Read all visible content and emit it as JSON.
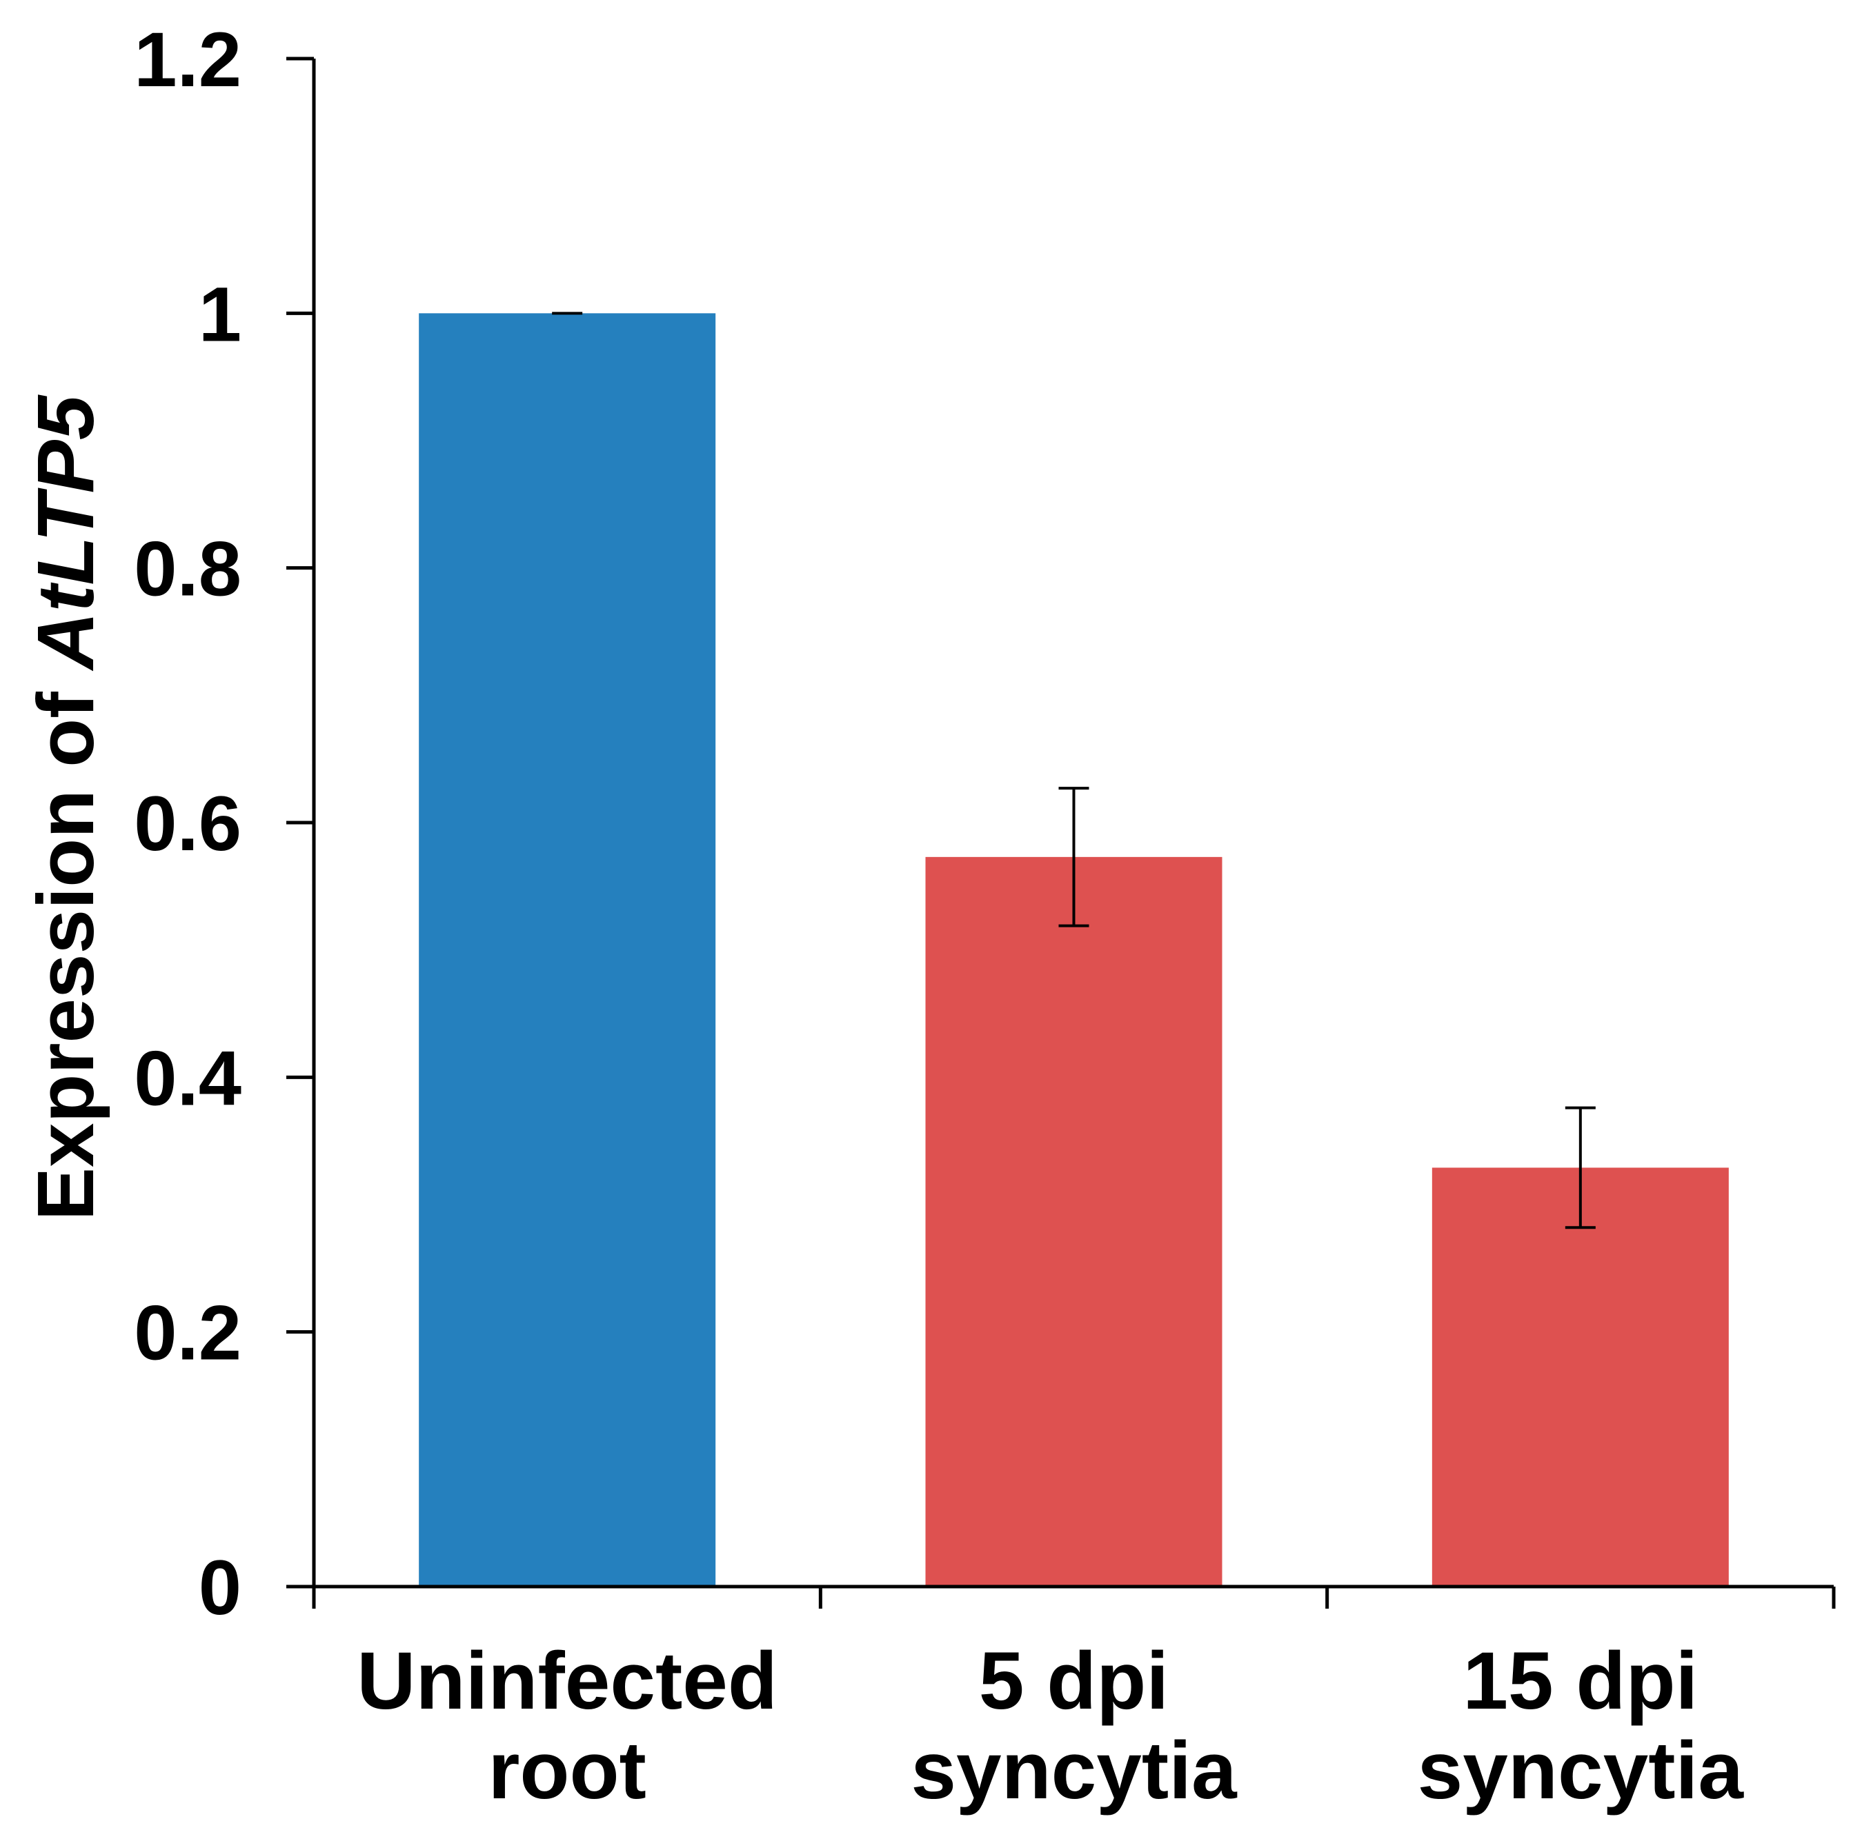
{
  "chart_data": {
    "type": "bar",
    "title": "",
    "xlabel": "",
    "ylabel": {
      "prefix": "Expression of ",
      "gene": "AtLTP5"
    },
    "ylim": [
      0,
      1.2
    ],
    "yticks": [
      0,
      0.2,
      0.4,
      0.6,
      0.8,
      1,
      1.2
    ],
    "ytick_labels": [
      "0",
      "0.2",
      "0.4",
      "0.6",
      "0.8",
      "1",
      "1.2"
    ],
    "categories": [
      {
        "line1": "Uninfected",
        "line2": "root"
      },
      {
        "line1": "5 dpi",
        "line2": "syncytia"
      },
      {
        "line1": "15 dpi",
        "line2": "syncytia"
      }
    ],
    "values": [
      1.0,
      0.573,
      0.329
    ],
    "error": [
      0.0,
      0.054,
      0.047
    ],
    "colors": [
      "#2580BE",
      "#DE5150",
      "#DE5150"
    ],
    "axis_color": "#000000",
    "grid": false
  }
}
